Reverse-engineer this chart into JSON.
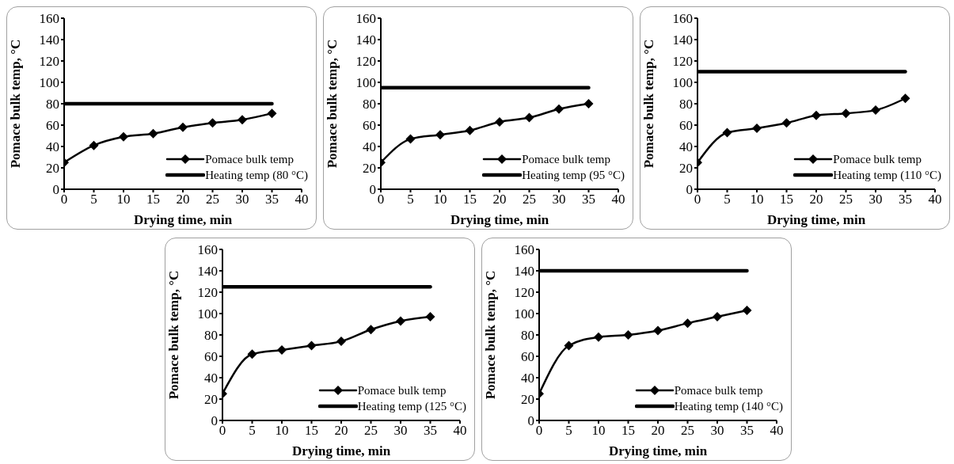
{
  "chart_data": [
    {
      "type": "line",
      "xlabel": "Drying time, min",
      "ylabel": "Pomace bulk temp, °C",
      "x": [
        0,
        5,
        10,
        15,
        20,
        25,
        30,
        35
      ],
      "xlim": [
        0,
        40
      ],
      "xticks": [
        0,
        5,
        10,
        15,
        20,
        25,
        30,
        35,
        40
      ],
      "ylim": [
        0,
        160
      ],
      "yticks": [
        0,
        20,
        40,
        60,
        80,
        100,
        120,
        140,
        160
      ],
      "legend": "bottom right",
      "series": [
        {
          "name": "Pomace bulk temp",
          "color": "#000000",
          "marker": "diamond",
          "values": [
            25,
            41,
            49,
            52,
            58,
            62,
            65,
            71
          ]
        },
        {
          "name": "Heating temp (80 °C)",
          "color": "#000000",
          "marker": "none",
          "values": [
            80,
            80,
            80,
            80,
            80,
            80,
            80,
            80
          ]
        }
      ]
    },
    {
      "type": "line",
      "xlabel": "Drying time, min",
      "ylabel": "Pomace bulk temp, °C",
      "x": [
        0,
        5,
        10,
        15,
        20,
        25,
        30,
        35
      ],
      "xlim": [
        0,
        40
      ],
      "xticks": [
        0,
        5,
        10,
        15,
        20,
        25,
        30,
        35,
        40
      ],
      "ylim": [
        0,
        160
      ],
      "yticks": [
        0,
        20,
        40,
        60,
        80,
        100,
        120,
        140,
        160
      ],
      "legend": "bottom right",
      "series": [
        {
          "name": "Pomace bulk temp",
          "color": "#000000",
          "marker": "diamond",
          "values": [
            25,
            47,
            51,
            55,
            63,
            67,
            75,
            80
          ]
        },
        {
          "name": "Heating temp (95 °C)",
          "color": "#000000",
          "marker": "none",
          "values": [
            95,
            95,
            95,
            95,
            95,
            95,
            95,
            95
          ]
        }
      ]
    },
    {
      "type": "line",
      "xlabel": "Drying time, min",
      "ylabel": "Pomace bulk temp, °C",
      "x": [
        0,
        5,
        10,
        15,
        20,
        25,
        30,
        35
      ],
      "xlim": [
        0,
        40
      ],
      "xticks": [
        0,
        5,
        10,
        15,
        20,
        25,
        30,
        35,
        40
      ],
      "ylim": [
        0,
        160
      ],
      "yticks": [
        0,
        20,
        40,
        60,
        80,
        100,
        120,
        140,
        160
      ],
      "legend": "bottom right",
      "series": [
        {
          "name": "Pomace bulk temp",
          "color": "#000000",
          "marker": "diamond",
          "values": [
            25,
            53,
            57,
            62,
            69,
            71,
            74,
            85
          ]
        },
        {
          "name": "Heating temp (110 °C)",
          "color": "#000000",
          "marker": "none",
          "values": [
            110,
            110,
            110,
            110,
            110,
            110,
            110,
            110
          ]
        }
      ]
    },
    {
      "type": "line",
      "xlabel": "Drying time, min",
      "ylabel": "Pomace bulk temp, °C",
      "x": [
        0,
        5,
        10,
        15,
        20,
        25,
        30,
        35
      ],
      "xlim": [
        0,
        40
      ],
      "xticks": [
        0,
        5,
        10,
        15,
        20,
        25,
        30,
        35,
        40
      ],
      "ylim": [
        0,
        160
      ],
      "yticks": [
        0,
        20,
        40,
        60,
        80,
        100,
        120,
        140,
        160
      ],
      "legend": "bottom right",
      "series": [
        {
          "name": "Pomace bulk temp",
          "color": "#000000",
          "marker": "diamond",
          "values": [
            25,
            62,
            66,
            70,
            74,
            85,
            93,
            97
          ]
        },
        {
          "name": "Heating temp (125 °C)",
          "color": "#000000",
          "marker": "none",
          "values": [
            125,
            125,
            125,
            125,
            125,
            125,
            125,
            125
          ]
        }
      ]
    },
    {
      "type": "line",
      "xlabel": "Drying time, min",
      "ylabel": "Pomace bulk temp, °C",
      "x": [
        0,
        5,
        10,
        15,
        20,
        25,
        30,
        35
      ],
      "xlim": [
        0,
        40
      ],
      "xticks": [
        0,
        5,
        10,
        15,
        20,
        25,
        30,
        35,
        40
      ],
      "ylim": [
        0,
        160
      ],
      "yticks": [
        0,
        20,
        40,
        60,
        80,
        100,
        120,
        140,
        160
      ],
      "legend": "bottom right",
      "series": [
        {
          "name": "Pomace bulk temp",
          "color": "#000000",
          "marker": "diamond",
          "values": [
            25,
            70,
            78,
            80,
            84,
            91,
            97,
            103
          ]
        },
        {
          "name": "Heating temp (140 °C)",
          "color": "#000000",
          "marker": "none",
          "values": [
            140,
            140,
            140,
            140,
            140,
            140,
            140,
            140
          ]
        }
      ]
    }
  ]
}
